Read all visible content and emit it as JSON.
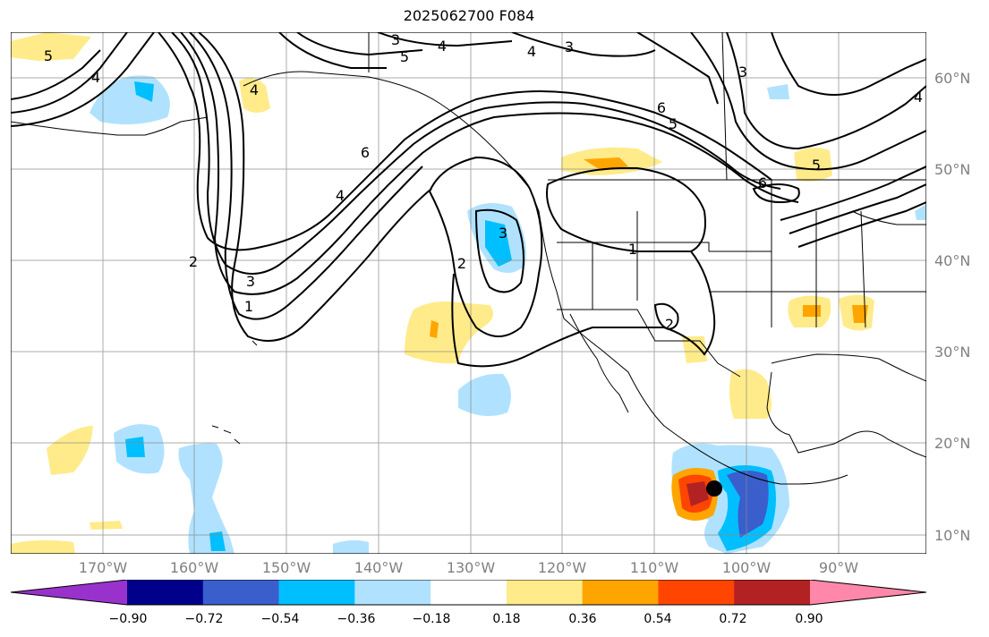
{
  "title": "2025062700 F084",
  "map": {
    "lat_labels": [
      "60°N",
      "50°N",
      "40°N",
      "30°N",
      "20°N",
      "10°N"
    ],
    "lon_labels": [
      "170°W",
      "160°W",
      "150°W",
      "140°W",
      "130°W",
      "120°W",
      "110°W",
      "100°W",
      "90°W"
    ],
    "contour_labels": [
      "3",
      "4",
      "5",
      "4",
      "3",
      "3",
      "6",
      "5",
      "4",
      "5",
      "4",
      "6",
      "4",
      "3",
      "2",
      "1",
      "3",
      "2",
      "1",
      "2",
      "6",
      "5",
      "4"
    ],
    "marker": "black-dot"
  },
  "colorbar": {
    "ticks": [
      "−0.90",
      "−0.72",
      "−0.54",
      "−0.36",
      "−0.18",
      "0.18",
      "0.36",
      "0.54",
      "0.72",
      "0.90"
    ],
    "colors": [
      "#9932cc",
      "#00008b",
      "#3a5fcd",
      "#00bfff",
      "#b0e2ff",
      "#ffffff",
      "#ffeb8a",
      "#ffa500",
      "#ff4500",
      "#b22222",
      "#ff88aa"
    ]
  }
}
